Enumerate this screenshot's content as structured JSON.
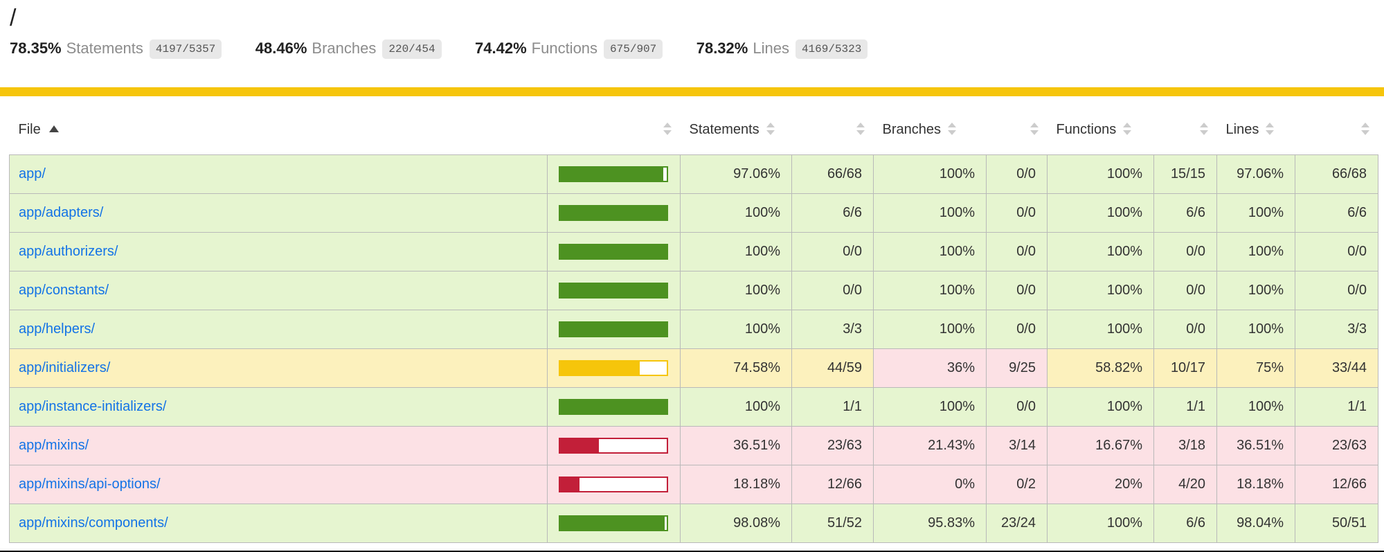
{
  "page": {
    "title": "/"
  },
  "summary": {
    "items": [
      {
        "pct": "78.35%",
        "label": "Statements",
        "fraction": "4197/5357"
      },
      {
        "pct": "48.46%",
        "label": "Branches",
        "fraction": "220/454"
      },
      {
        "pct": "74.42%",
        "label": "Functions",
        "fraction": "675/907"
      },
      {
        "pct": "78.32%",
        "label": "Lines",
        "fraction": "4169/5323"
      }
    ]
  },
  "table": {
    "headers": {
      "file": "File",
      "statements": "Statements",
      "branches": "Branches",
      "functions": "Functions",
      "lines": "Lines"
    },
    "sort": {
      "column": "file",
      "direction": "asc"
    },
    "rows": [
      {
        "file": "app/",
        "level": "high",
        "bar": 97.06,
        "cells": [
          {
            "name": "statements",
            "pct": "97.06%",
            "abs": "66/68",
            "level": "high"
          },
          {
            "name": "branches",
            "pct": "100%",
            "abs": "0/0",
            "level": "high"
          },
          {
            "name": "functions",
            "pct": "100%",
            "abs": "15/15",
            "level": "high"
          },
          {
            "name": "lines",
            "pct": "97.06%",
            "abs": "66/68",
            "level": "high"
          }
        ]
      },
      {
        "file": "app/adapters/",
        "level": "high",
        "bar": 100,
        "cells": [
          {
            "name": "statements",
            "pct": "100%",
            "abs": "6/6",
            "level": "high"
          },
          {
            "name": "branches",
            "pct": "100%",
            "abs": "0/0",
            "level": "high"
          },
          {
            "name": "functions",
            "pct": "100%",
            "abs": "6/6",
            "level": "high"
          },
          {
            "name": "lines",
            "pct": "100%",
            "abs": "6/6",
            "level": "high"
          }
        ]
      },
      {
        "file": "app/authorizers/",
        "level": "high",
        "bar": 100,
        "cells": [
          {
            "name": "statements",
            "pct": "100%",
            "abs": "0/0",
            "level": "high"
          },
          {
            "name": "branches",
            "pct": "100%",
            "abs": "0/0",
            "level": "high"
          },
          {
            "name": "functions",
            "pct": "100%",
            "abs": "0/0",
            "level": "high"
          },
          {
            "name": "lines",
            "pct": "100%",
            "abs": "0/0",
            "level": "high"
          }
        ]
      },
      {
        "file": "app/constants/",
        "level": "high",
        "bar": 100,
        "cells": [
          {
            "name": "statements",
            "pct": "100%",
            "abs": "0/0",
            "level": "high"
          },
          {
            "name": "branches",
            "pct": "100%",
            "abs": "0/0",
            "level": "high"
          },
          {
            "name": "functions",
            "pct": "100%",
            "abs": "0/0",
            "level": "high"
          },
          {
            "name": "lines",
            "pct": "100%",
            "abs": "0/0",
            "level": "high"
          }
        ]
      },
      {
        "file": "app/helpers/",
        "level": "high",
        "bar": 100,
        "cells": [
          {
            "name": "statements",
            "pct": "100%",
            "abs": "3/3",
            "level": "high"
          },
          {
            "name": "branches",
            "pct": "100%",
            "abs": "0/0",
            "level": "high"
          },
          {
            "name": "functions",
            "pct": "100%",
            "abs": "0/0",
            "level": "high"
          },
          {
            "name": "lines",
            "pct": "100%",
            "abs": "3/3",
            "level": "high"
          }
        ]
      },
      {
        "file": "app/initializers/",
        "level": "medium",
        "bar": 74.58,
        "cells": [
          {
            "name": "statements",
            "pct": "74.58%",
            "abs": "44/59",
            "level": "medium"
          },
          {
            "name": "branches",
            "pct": "36%",
            "abs": "9/25",
            "level": "low"
          },
          {
            "name": "functions",
            "pct": "58.82%",
            "abs": "10/17",
            "level": "medium"
          },
          {
            "name": "lines",
            "pct": "75%",
            "abs": "33/44",
            "level": "medium"
          }
        ]
      },
      {
        "file": "app/instance-initializers/",
        "level": "high",
        "bar": 100,
        "cells": [
          {
            "name": "statements",
            "pct": "100%",
            "abs": "1/1",
            "level": "high"
          },
          {
            "name": "branches",
            "pct": "100%",
            "abs": "0/0",
            "level": "high"
          },
          {
            "name": "functions",
            "pct": "100%",
            "abs": "1/1",
            "level": "high"
          },
          {
            "name": "lines",
            "pct": "100%",
            "abs": "1/1",
            "level": "high"
          }
        ]
      },
      {
        "file": "app/mixins/",
        "level": "low",
        "bar": 36.51,
        "cells": [
          {
            "name": "statements",
            "pct": "36.51%",
            "abs": "23/63",
            "level": "low"
          },
          {
            "name": "branches",
            "pct": "21.43%",
            "abs": "3/14",
            "level": "low"
          },
          {
            "name": "functions",
            "pct": "16.67%",
            "abs": "3/18",
            "level": "low"
          },
          {
            "name": "lines",
            "pct": "36.51%",
            "abs": "23/63",
            "level": "low"
          }
        ]
      },
      {
        "file": "app/mixins/api-options/",
        "level": "low",
        "bar": 18.18,
        "cells": [
          {
            "name": "statements",
            "pct": "18.18%",
            "abs": "12/66",
            "level": "low"
          },
          {
            "name": "branches",
            "pct": "0%",
            "abs": "0/2",
            "level": "low"
          },
          {
            "name": "functions",
            "pct": "20%",
            "abs": "4/20",
            "level": "low"
          },
          {
            "name": "lines",
            "pct": "18.18%",
            "abs": "12/66",
            "level": "low"
          }
        ]
      },
      {
        "file": "app/mixins/components/",
        "level": "high",
        "bar": 98.08,
        "cells": [
          {
            "name": "statements",
            "pct": "98.08%",
            "abs": "51/52",
            "level": "high"
          },
          {
            "name": "branches",
            "pct": "95.83%",
            "abs": "23/24",
            "level": "high"
          },
          {
            "name": "functions",
            "pct": "100%",
            "abs": "6/6",
            "level": "high"
          },
          {
            "name": "lines",
            "pct": "98.04%",
            "abs": "50/51",
            "level": "high"
          }
        ]
      }
    ]
  },
  "colors": {
    "status_line": "#f6c50b",
    "high_bg": "#e6f5d0",
    "medium_bg": "#fcf1bd",
    "low_bg": "#fce1e5",
    "bar_green": "#4d9221",
    "bar_yellow": "#f6c50b",
    "bar_red": "#c21f39",
    "link": "#1373e6",
    "grid_border": "#b9b9b9"
  }
}
